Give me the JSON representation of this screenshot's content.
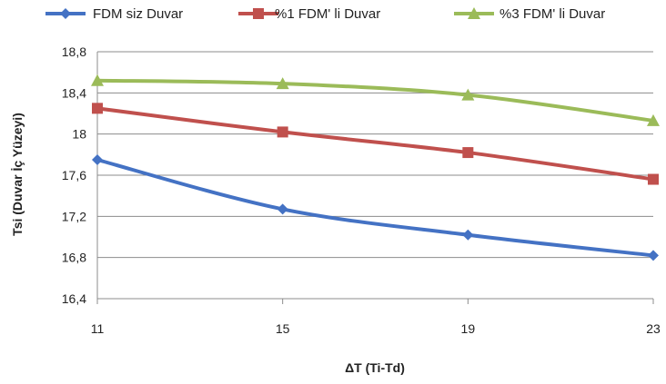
{
  "chart_data": {
    "type": "line",
    "x": [
      11,
      15,
      19,
      23
    ],
    "x_tick_labels": [
      "11",
      "15",
      "19",
      "23"
    ],
    "y_tick_labels": [
      "16,4",
      "16,8",
      "17,2",
      "17,6",
      "18",
      "18,4",
      "18,8"
    ],
    "y_ticks": [
      16.4,
      16.8,
      17.2,
      17.6,
      18.0,
      18.4,
      18.8
    ],
    "ylim": [
      16.4,
      18.8
    ],
    "xlabel": "ΔT (Ti-Td)",
    "ylabel": "Tsi (Duvar İç Yüzeyi)",
    "grid": "horizontal",
    "legend_position": "top",
    "series": [
      {
        "name": "FDM siz Duvar",
        "values": [
          17.75,
          17.27,
          17.02,
          16.82
        ],
        "color": "#4472C4",
        "marker": "diamond"
      },
      {
        "name": "%1 FDM' li Duvar",
        "values": [
          18.25,
          18.02,
          17.82,
          17.56
        ],
        "color": "#C0504D",
        "marker": "square"
      },
      {
        "name": "%3 FDM' li Duvar",
        "values": [
          18.52,
          18.49,
          18.38,
          18.13
        ],
        "color": "#9BBB59",
        "marker": "triangle"
      }
    ]
  }
}
